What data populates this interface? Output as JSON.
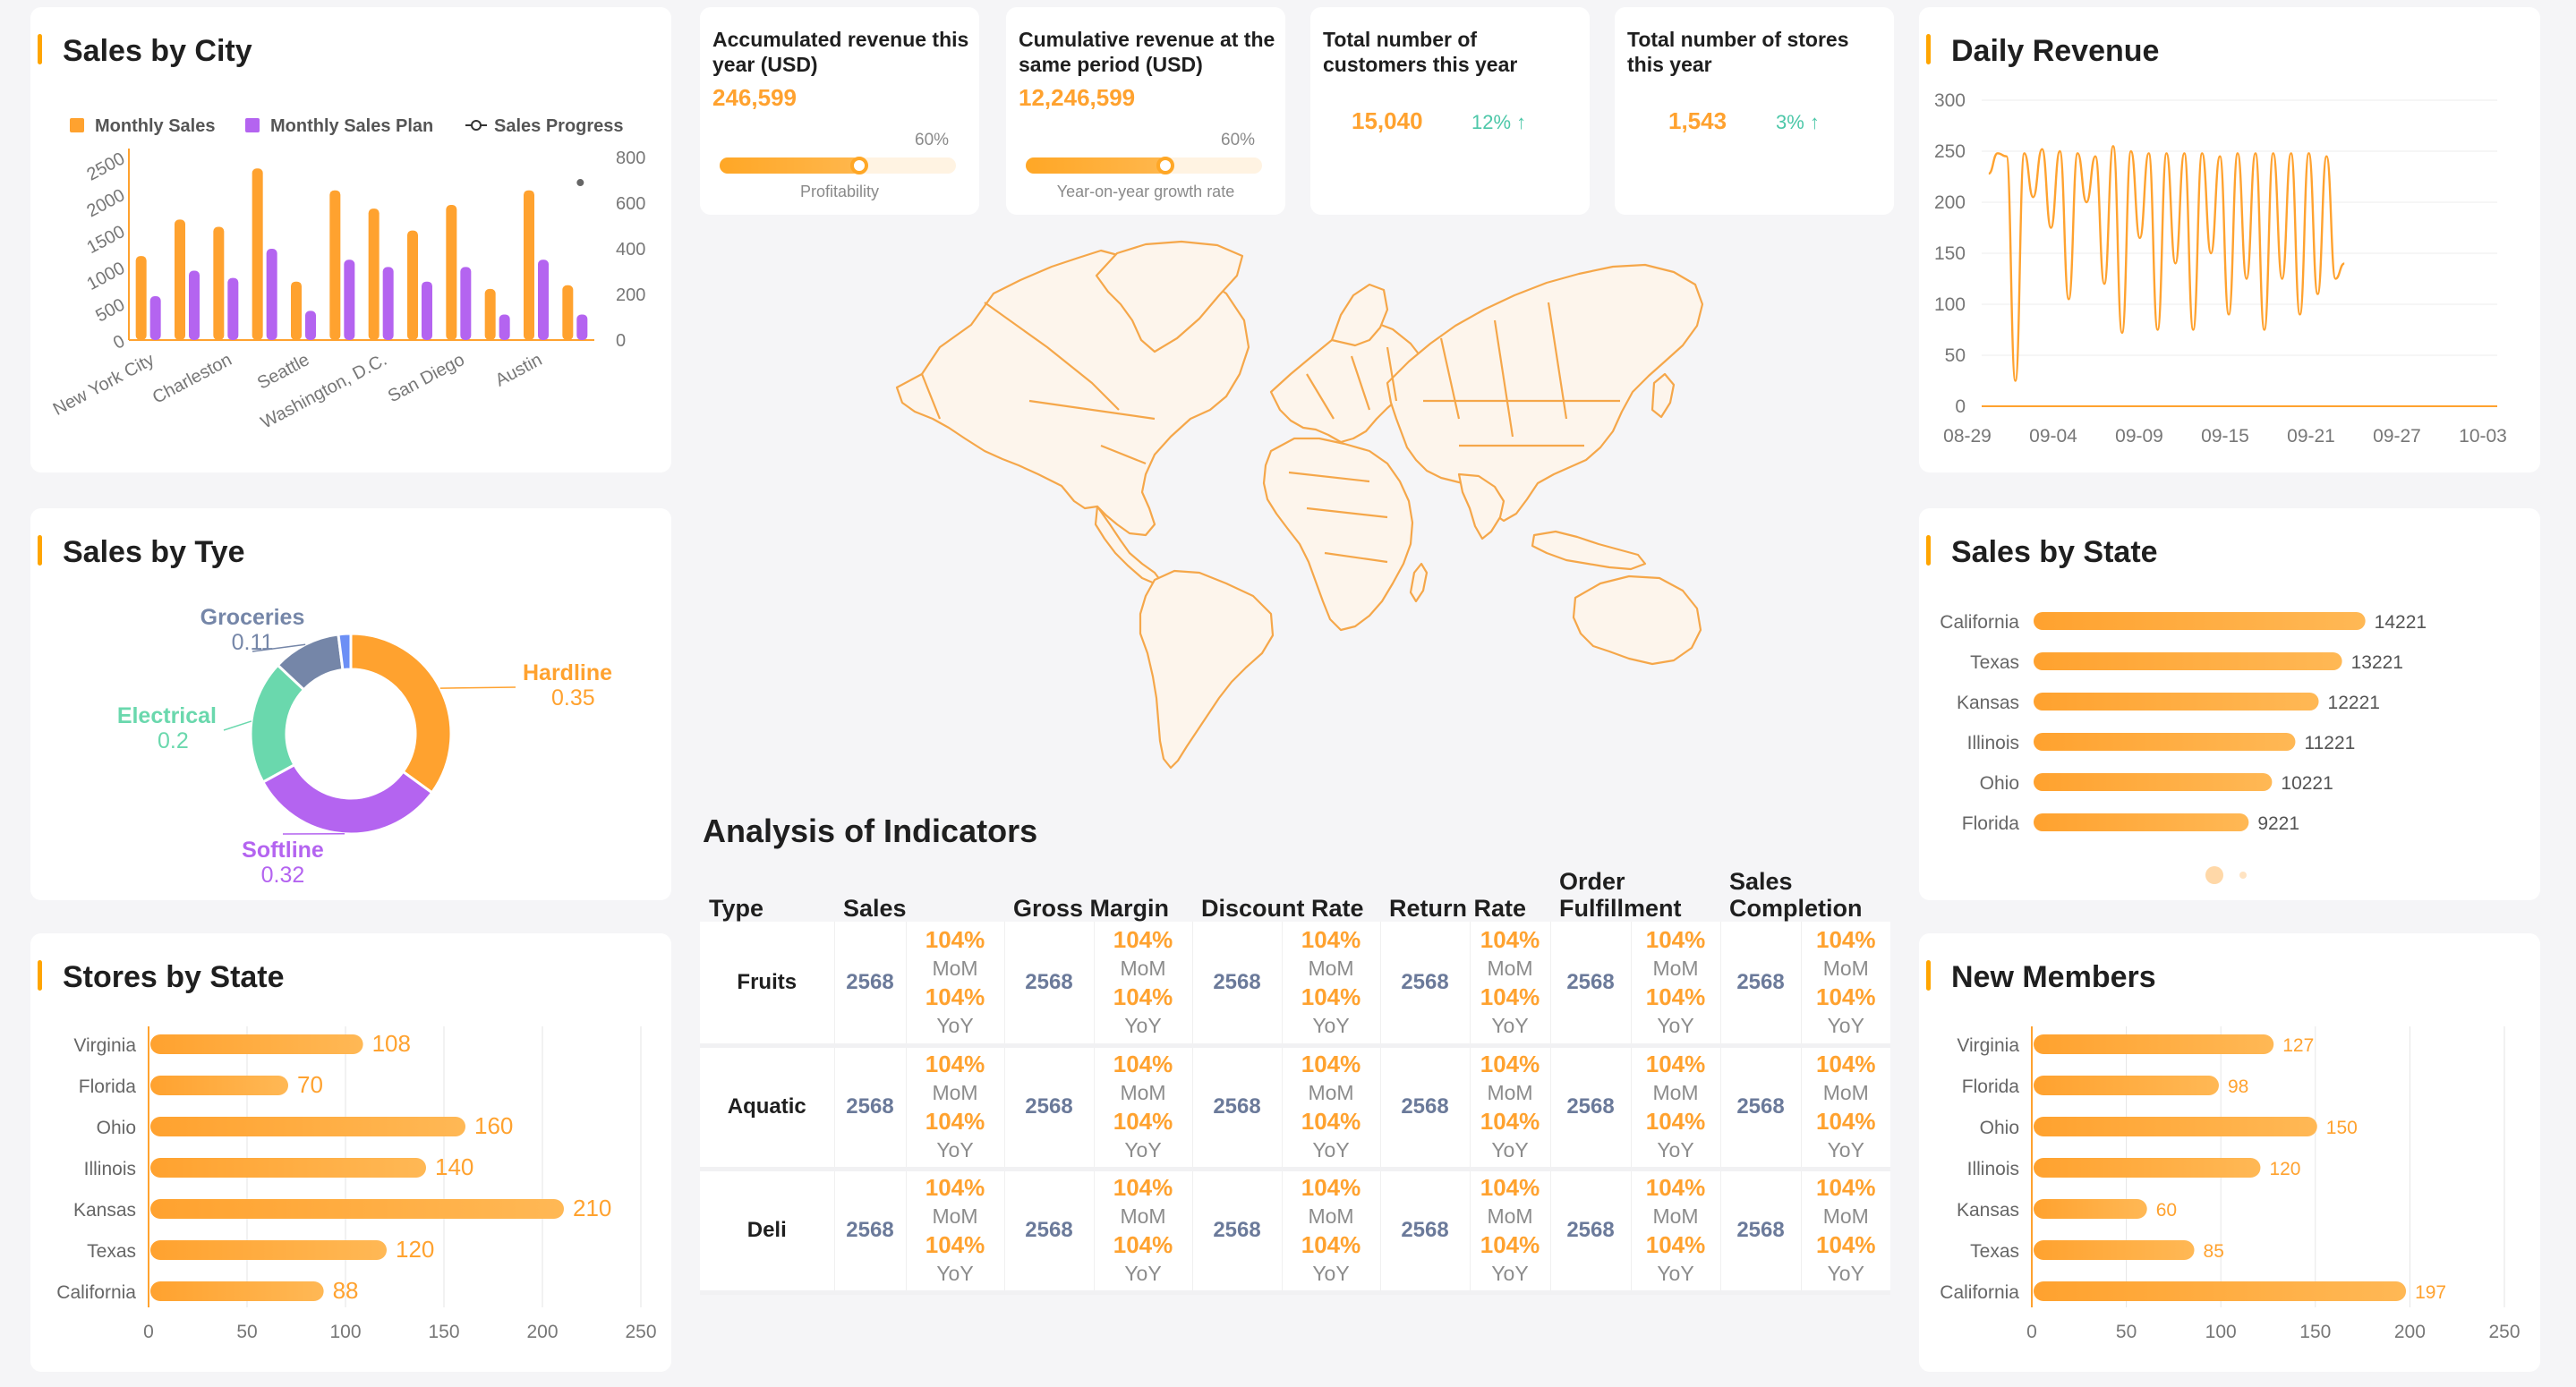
{
  "panels": {
    "sales_by_city": "Sales by City",
    "sales_by_type": "Sales by Tye",
    "stores_by_state": "Stores by State",
    "daily_revenue": "Daily Revenue",
    "sales_by_state": "Sales by State",
    "new_members": "New Members"
  },
  "kpis": {
    "accumulated": {
      "title": "Accumulated revenue this year (USD)",
      "value": "246,599",
      "percent": "60%",
      "progress": 0.6,
      "caption": "Profitability"
    },
    "cumulative": {
      "title": "Cumulative revenue at the same period (USD)",
      "value": "12,246,599",
      "percent": "60%",
      "progress": 0.6,
      "caption": "Year-on-year growth rate"
    },
    "customers": {
      "title": "Total number of customers this year",
      "value": "15,040",
      "growth": "12% ↑"
    },
    "stores": {
      "title": "Total number of stores this year",
      "value": "1,543",
      "growth": "3% ↑"
    }
  },
  "colors": {
    "orange": "#ffa22f",
    "purple": "#b464f0",
    "teal": "#6ad8ad",
    "slate": "#7586a8",
    "blue": "#6c8ff5",
    "green": "#4cc7a8"
  },
  "chart_data": [
    {
      "id": "sales_by_city",
      "type": "bar",
      "title": "Sales by City",
      "categories": [
        "New York City",
        "",
        "Charleston",
        "",
        "Seattle",
        "",
        "Washington, D.C.",
        "",
        "San Diego",
        "",
        "Austin",
        ""
      ],
      "series": [
        {
          "name": "Monthly Sales",
          "axis": "left",
          "values": [
            1150,
            1650,
            1550,
            2350,
            800,
            2050,
            1800,
            1500,
            1850,
            700,
            2050,
            750
          ]
        },
        {
          "name": "Monthly Sales Plan",
          "axis": "left",
          "values": [
            600,
            950,
            850,
            1250,
            400,
            1100,
            1000,
            800,
            1000,
            350,
            1100,
            350
          ]
        },
        {
          "name": "Sales Progress",
          "axis": "right",
          "values": [
            null,
            null,
            null,
            null,
            null,
            null,
            null,
            null,
            null,
            null,
            null,
            690
          ]
        }
      ],
      "ylim_left": [
        0,
        2500
      ],
      "yticks_left": [
        0,
        500,
        1000,
        1500,
        2000,
        2500
      ],
      "ylim_right": [
        0,
        800
      ],
      "yticks_right": [
        0,
        200,
        400,
        600,
        800
      ],
      "legend": "top"
    },
    {
      "id": "sales_by_type",
      "type": "pie",
      "title": "Sales by Tye",
      "slices": [
        {
          "label": "Hardline",
          "value": 0.35,
          "color": "#ffa22f"
        },
        {
          "label": "Softline",
          "value": 0.32,
          "color": "#b464f0"
        },
        {
          "label": "Electrical",
          "value": 0.2,
          "color": "#6ad8ad"
        },
        {
          "label": "Groceries",
          "value": 0.11,
          "color": "#7586a8"
        },
        {
          "label": "",
          "value": 0.02,
          "color": "#6c8ff5"
        }
      ]
    },
    {
      "id": "stores_by_state",
      "type": "bar",
      "orientation": "horizontal",
      "title": "Stores by State",
      "categories": [
        "Virginia",
        "Florida",
        "Ohio",
        "Illinois",
        "Kansas",
        "Texas",
        "California"
      ],
      "values": [
        108,
        70,
        160,
        140,
        210,
        120,
        88
      ],
      "xlim": [
        0,
        250
      ],
      "xticks": [
        0,
        50,
        100,
        150,
        200,
        250
      ]
    },
    {
      "id": "daily_revenue",
      "type": "line",
      "title": "Daily Revenue",
      "x_ticks": [
        "08-29",
        "09-04",
        "09-09",
        "09-15",
        "09-21",
        "09-27",
        "10-03"
      ],
      "ylim": [
        0,
        300
      ],
      "yticks": [
        0,
        50,
        100,
        150,
        200,
        250,
        300
      ],
      "points": [
        [
          2,
          228
        ],
        [
          3,
          248
        ],
        [
          4,
          245
        ],
        [
          5,
          25
        ],
        [
          6,
          248
        ],
        [
          7,
          205
        ],
        [
          8,
          252
        ],
        [
          9,
          175
        ],
        [
          10,
          250
        ],
        [
          11,
          105
        ],
        [
          12,
          248
        ],
        [
          13,
          200
        ],
        [
          14,
          245
        ],
        [
          15,
          120
        ],
        [
          16,
          255
        ],
        [
          17,
          72
        ],
        [
          18,
          250
        ],
        [
          19,
          165
        ],
        [
          20,
          248
        ],
        [
          21,
          75
        ],
        [
          22,
          248
        ],
        [
          23,
          140
        ],
        [
          24,
          248
        ],
        [
          25,
          75
        ],
        [
          26,
          248
        ],
        [
          27,
          150
        ],
        [
          28,
          245
        ],
        [
          29,
          90
        ],
        [
          30,
          248
        ],
        [
          31,
          125
        ],
        [
          32,
          248
        ],
        [
          33,
          75
        ],
        [
          34,
          248
        ],
        [
          35,
          125
        ],
        [
          36,
          248
        ],
        [
          37,
          90
        ],
        [
          38,
          248
        ],
        [
          39,
          110
        ],
        [
          40,
          245
        ],
        [
          41,
          125
        ],
        [
          42,
          140
        ]
      ],
      "x_range": [
        0,
        60
      ]
    },
    {
      "id": "sales_by_state",
      "type": "bar",
      "orientation": "horizontal",
      "title": "Sales by State",
      "categories": [
        "California",
        "Texas",
        "Kansas",
        "Illinois",
        "Ohio",
        "Florida"
      ],
      "values": [
        14221,
        13221,
        12221,
        11221,
        10221,
        9221
      ],
      "xlim": [
        0,
        15500
      ]
    },
    {
      "id": "new_members",
      "type": "bar",
      "orientation": "horizontal",
      "title": "New Members",
      "categories": [
        "Virginia",
        "Florida",
        "Ohio",
        "Illinois",
        "Kansas",
        "Texas",
        "California"
      ],
      "values": [
        127,
        98,
        150,
        120,
        60,
        85,
        197
      ],
      "xlim": [
        0,
        250
      ],
      "xticks": [
        0,
        50,
        100,
        150,
        200,
        250
      ]
    }
  ],
  "analysis": {
    "title": "Analysis of Indicators",
    "headers": [
      "Type",
      "Sales",
      "Gross Margin",
      "Discount Rate",
      "Return Rate",
      "Order Fulfillment",
      "Sales Completion"
    ],
    "rows": [
      {
        "type": "Fruits",
        "cells": [
          {
            "value": "2568",
            "mom": "104%",
            "mom_label": "MoM",
            "yoy": "104%",
            "yoy_label": "YoY"
          },
          {
            "value": "2568",
            "mom": "104%",
            "mom_label": "MoM",
            "yoy": "104%",
            "yoy_label": "YoY"
          },
          {
            "value": "2568",
            "mom": "104%",
            "mom_label": "MoM",
            "yoy": "104%",
            "yoy_label": "YoY"
          },
          {
            "value": "2568",
            "mom": "104%",
            "mom_label": "MoM",
            "yoy": "104%",
            "yoy_label": "YoY"
          },
          {
            "value": "2568",
            "mom": "104%",
            "mom_label": "MoM",
            "yoy": "104%",
            "yoy_label": "YoY"
          },
          {
            "value": "2568",
            "mom": "104%",
            "mom_label": "MoM",
            "yoy": "104%",
            "yoy_label": "YoY"
          }
        ]
      },
      {
        "type": "Aquatic",
        "cells": [
          {
            "value": "2568",
            "mom": "104%",
            "mom_label": "MoM",
            "yoy": "104%",
            "yoy_label": "YoY"
          },
          {
            "value": "2568",
            "mom": "104%",
            "mom_label": "MoM",
            "yoy": "104%",
            "yoy_label": "YoY"
          },
          {
            "value": "2568",
            "mom": "104%",
            "mom_label": "MoM",
            "yoy": "104%",
            "yoy_label": "YoY"
          },
          {
            "value": "2568",
            "mom": "104%",
            "mom_label": "MoM",
            "yoy": "104%",
            "yoy_label": "YoY"
          },
          {
            "value": "2568",
            "mom": "104%",
            "mom_label": "MoM",
            "yoy": "104%",
            "yoy_label": "YoY"
          },
          {
            "value": "2568",
            "mom": "104%",
            "mom_label": "MoM",
            "yoy": "104%",
            "yoy_label": "YoY"
          }
        ]
      },
      {
        "type": "Deli",
        "cells": [
          {
            "value": "2568",
            "mom": "104%",
            "mom_label": "MoM",
            "yoy": "104%",
            "yoy_label": "YoY"
          },
          {
            "value": "2568",
            "mom": "104%",
            "mom_label": "MoM",
            "yoy": "104%",
            "yoy_label": "YoY"
          },
          {
            "value": "2568",
            "mom": "104%",
            "mom_label": "MoM",
            "yoy": "104%",
            "yoy_label": "YoY"
          },
          {
            "value": "2568",
            "mom": "104%",
            "mom_label": "MoM",
            "yoy": "104%",
            "yoy_label": "YoY"
          },
          {
            "value": "2568",
            "mom": "104%",
            "mom_label": "MoM",
            "yoy": "104%",
            "yoy_label": "YoY"
          },
          {
            "value": "2568",
            "mom": "104%",
            "mom_label": "MoM",
            "yoy": "104%",
            "yoy_label": "YoY"
          }
        ]
      }
    ]
  },
  "sales_by_state_pager": {
    "pages": 2,
    "current": 1
  }
}
